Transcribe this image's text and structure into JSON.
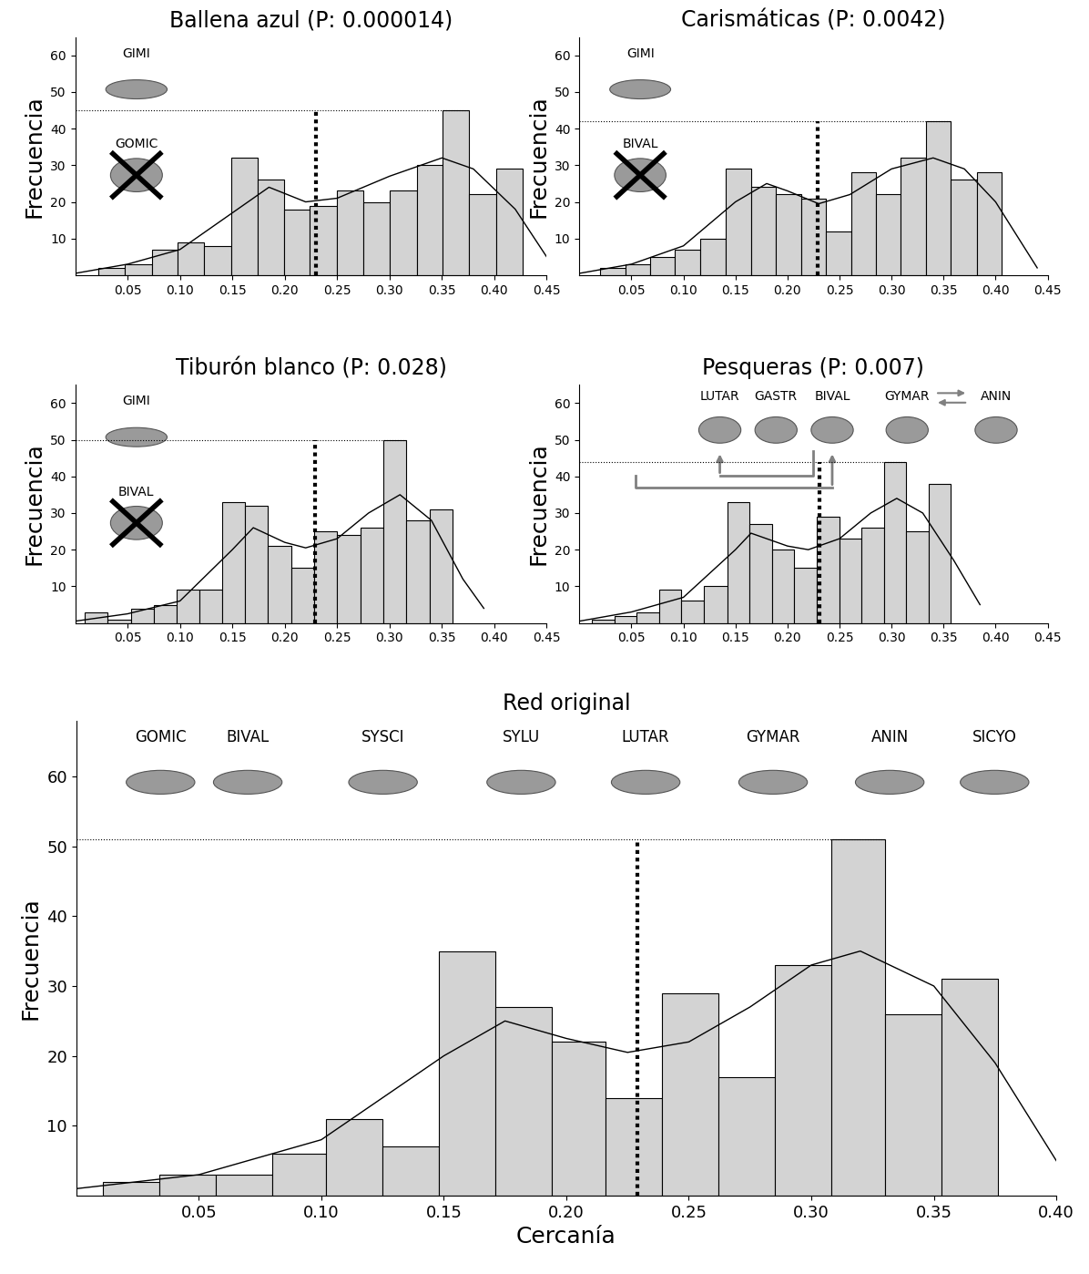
{
  "chart_data": [
    {
      "type": "histogram",
      "title": "Ballena azul (P: 0.000014)",
      "ylabel": "Frecuencia",
      "color": "#d3d3d3",
      "bins": [
        0.022,
        0.047,
        0.073,
        0.098,
        0.123,
        0.149,
        0.174,
        0.199,
        0.224,
        0.25,
        0.275,
        0.3,
        0.326,
        0.351,
        0.376,
        0.402,
        0.427
      ],
      "counts": [
        2,
        3,
        7,
        9,
        8,
        32,
        26,
        18,
        19,
        23,
        20,
        23,
        30,
        45,
        22,
        29
      ],
      "xlim": [
        0,
        0.45
      ],
      "ylim": [
        0,
        65
      ],
      "xticks": [
        0.05,
        {
          "value": 0.1,
          "label": "0.10"
        },
        0.15,
        {
          "value": 0.2,
          "label": "0.20"
        },
        0.25,
        {
          "value": 0.3,
          "label": "0.30"
        },
        0.35,
        {
          "value": 0.4,
          "label": "0.40"
        },
        0.45
      ],
      "yticks": [
        10,
        20,
        30,
        40,
        50,
        60
      ],
      "reference_line": 0.23,
      "curve": {
        "x": [
          0,
          0.05,
          0.1,
          0.15,
          0.185,
          0.22,
          0.25,
          0.3,
          0.35,
          0.38,
          0.42,
          0.45
        ],
        "y": [
          0.5,
          3,
          7,
          17,
          24,
          20,
          21,
          27,
          32,
          29,
          18,
          5
        ]
      },
      "annotations": [
        "GIMI"
      ],
      "removed_annotations": [
        "GOMIC"
      ]
    },
    {
      "type": "histogram",
      "title": "Carismáticas (P: 0.0042)",
      "ylabel": "Frecuencia",
      "color": "#d3d3d3",
      "bins": [
        0.02,
        0.044,
        0.068,
        0.092,
        0.116,
        0.141,
        0.165,
        0.189,
        0.213,
        0.237,
        0.261,
        0.285,
        0.309,
        0.333,
        0.357,
        0.382,
        0.406
      ],
      "counts": [
        2,
        3,
        5,
        7,
        10,
        29,
        24,
        22,
        21,
        12,
        28,
        22,
        32,
        42,
        26,
        28
      ],
      "xlim": [
        0,
        0.45
      ],
      "ylim": [
        0,
        65
      ],
      "xticks": [
        0.05,
        {
          "value": 0.1,
          "label": "0.10"
        },
        0.15,
        {
          "value": 0.2,
          "label": "0.20"
        },
        0.25,
        {
          "value": 0.3,
          "label": "0.30"
        },
        0.35,
        {
          "value": 0.4,
          "label": "0.40"
        },
        0.45
      ],
      "yticks": [
        10,
        20,
        30,
        40,
        50,
        60
      ],
      "reference_line": 0.229,
      "curve": {
        "x": [
          0,
          0.05,
          0.1,
          0.15,
          0.18,
          0.2,
          0.23,
          0.26,
          0.3,
          0.34,
          0.37,
          0.4,
          0.44
        ],
        "y": [
          0.5,
          3,
          8,
          20,
          25,
          23,
          19.5,
          22,
          29,
          32,
          29,
          20,
          2
        ]
      },
      "annotations": [
        "GIMI"
      ],
      "removed_annotations": [
        "BIVAL"
      ]
    },
    {
      "type": "histogram",
      "title": "Tiburón blanco (P: 0.028)",
      "ylabel": "Frecuencia",
      "color": "#d3d3d3",
      "bins": [
        0.009,
        0.031,
        0.053,
        0.075,
        0.097,
        0.119,
        0.14,
        0.162,
        0.184,
        0.206,
        0.228,
        0.25,
        0.272,
        0.294,
        0.316,
        0.338,
        0.36
      ],
      "counts": [
        3,
        1,
        4,
        5,
        9,
        9,
        33,
        32,
        21,
        15,
        25,
        24,
        26,
        50,
        28,
        31
      ],
      "xlim": [
        0,
        0.45
      ],
      "ylim": [
        0,
        65
      ],
      "xticks": [
        0.05,
        {
          "value": 0.1,
          "label": "0.10"
        },
        0.15,
        {
          "value": 0.2,
          "label": "0.20"
        },
        0.25,
        {
          "value": 0.3,
          "label": "0.30"
        },
        0.35,
        {
          "value": 0.4,
          "label": "0.40"
        },
        0.45
      ],
      "yticks": [
        10,
        20,
        30,
        40,
        50,
        60
      ],
      "reference_line": 0.229,
      "curve": {
        "x": [
          0,
          0.05,
          0.1,
          0.15,
          0.17,
          0.2,
          0.22,
          0.25,
          0.28,
          0.31,
          0.34,
          0.37,
          0.39
        ],
        "y": [
          0.5,
          2.5,
          6,
          20,
          26,
          22,
          20.5,
          23,
          30,
          35,
          28,
          12,
          4
        ]
      },
      "annotations": [
        "GIMI"
      ],
      "removed_annotations": [
        "BIVAL"
      ]
    },
    {
      "type": "histogram",
      "title": "Pesqueras (P: 0.007)",
      "ylabel": "Frecuencia",
      "color": "#d3d3d3",
      "bins": [
        0.012,
        0.034,
        0.055,
        0.077,
        0.098,
        0.12,
        0.142,
        0.163,
        0.185,
        0.206,
        0.228,
        0.25,
        0.271,
        0.293,
        0.314,
        0.336,
        0.357
      ],
      "counts": [
        1,
        2,
        3,
        9,
        6,
        10,
        33,
        27,
        20,
        15,
        29,
        23,
        26,
        44,
        25,
        38
      ],
      "xlim": [
        0,
        0.45
      ],
      "ylim": [
        0,
        65
      ],
      "xticks": [
        0.05,
        {
          "value": 0.1,
          "label": "0.10"
        },
        0.15,
        {
          "value": 0.2,
          "label": "0.20"
        },
        0.25,
        {
          "value": 0.3,
          "label": "0.30"
        },
        0.35,
        {
          "value": 0.4,
          "label": "0.40"
        },
        0.45
      ],
      "yticks": [
        10,
        20,
        30,
        40,
        50,
        60
      ],
      "reference_line": 0.231,
      "curve": {
        "x": [
          0,
          0.05,
          0.1,
          0.15,
          0.165,
          0.2,
          0.22,
          0.25,
          0.28,
          0.305,
          0.33,
          0.36,
          0.385
        ],
        "y": [
          0.5,
          3,
          7,
          20,
          24.5,
          21,
          20,
          23,
          30,
          34,
          30,
          17,
          5
        ]
      },
      "annotations": [
        "LUTAR",
        "GASTR",
        "BIVAL",
        "GYMAR",
        "ANIN"
      ],
      "removed_annotations": []
    },
    {
      "type": "histogram",
      "title": "Red original",
      "xlabel": "Cercanía",
      "ylabel": "Frecuencia",
      "color": "#d3d3d3",
      "bins": [
        0.011,
        0.034,
        0.057,
        0.08,
        0.102,
        0.125,
        0.148,
        0.171,
        0.194,
        0.216,
        0.239,
        0.262,
        0.285,
        0.308,
        0.33,
        0.353,
        0.376
      ],
      "counts": [
        2,
        3,
        3,
        6,
        11,
        7,
        35,
        27,
        22,
        14,
        29,
        17,
        33,
        51,
        26,
        31
      ],
      "xlim": [
        0,
        0.4
      ],
      "ylim": [
        0,
        68
      ],
      "xticks": [
        0.05,
        {
          "value": 0.1,
          "label": "0.10"
        },
        0.15,
        {
          "value": 0.2,
          "label": "0.20"
        },
        0.25,
        {
          "value": 0.3,
          "label": "0.30"
        },
        0.35,
        {
          "value": 0.4,
          "label": "0.40"
        }
      ],
      "yticks": [
        10,
        20,
        30,
        40,
        50,
        60
      ],
      "reference_line": 0.229,
      "curve": {
        "x": [
          0,
          0.05,
          0.1,
          0.15,
          0.175,
          0.2,
          0.225,
          0.25,
          0.275,
          0.3,
          0.32,
          0.35,
          0.375,
          0.4
        ],
        "y": [
          1,
          3,
          8,
          20,
          25,
          22.5,
          20.5,
          22,
          27,
          33,
          35,
          30,
          19,
          5
        ]
      },
      "annotations": [
        "GOMIC",
        "BIVAL",
        "SYSCI",
        "SYLU",
        "LUTAR",
        "GYMAR",
        "ANIN",
        "SICYO"
      ],
      "removed_annotations": []
    }
  ]
}
